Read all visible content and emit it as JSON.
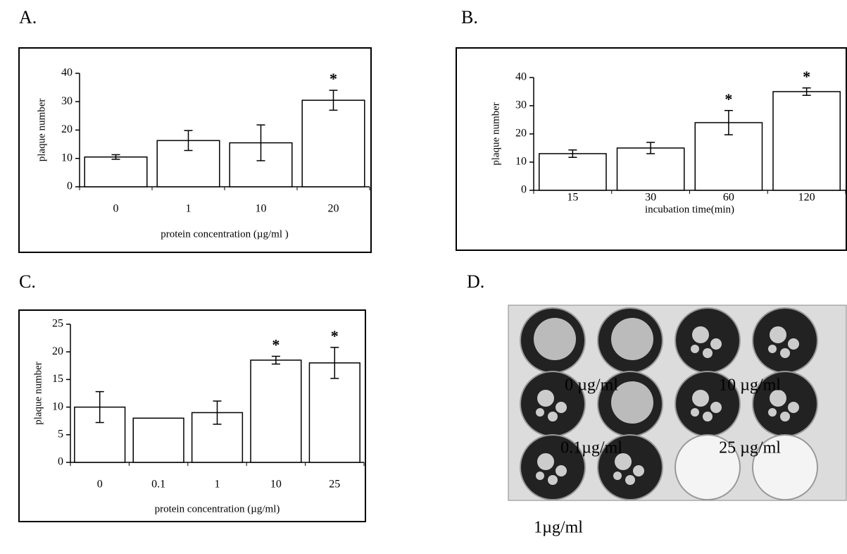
{
  "panels": {
    "labels": [
      "A.",
      "B.",
      "C.",
      "D."
    ]
  },
  "chart_data": [
    {
      "type": "bar",
      "ylabel": "plaque number",
      "xlabel": "protein concentration (µg/ml )",
      "categories": [
        "0",
        "1",
        "10",
        "20"
      ],
      "values": [
        10.5,
        16.3,
        15.5,
        30.5
      ],
      "errors": [
        0.8,
        3.5,
        6.3,
        3.5
      ],
      "markers": [
        null,
        null,
        null,
        "*"
      ],
      "color": "#ffffff",
      "ylim": [
        0,
        40
      ],
      "yticks": [
        0,
        10,
        20,
        30,
        40
      ]
    },
    {
      "type": "bar",
      "ylabel": "plaque number",
      "xlabel": "incubation time(min)",
      "categories": [
        "15",
        "30",
        "60",
        "120"
      ],
      "values": [
        13,
        15,
        24,
        35
      ],
      "errors": [
        1.3,
        2,
        4.3,
        1.3
      ],
      "markers": [
        null,
        null,
        "*",
        "*"
      ],
      "color": "#ffffff",
      "ylim": [
        0,
        40
      ],
      "yticks": [
        0,
        10,
        20,
        30,
        40
      ]
    },
    {
      "type": "bar",
      "ylabel": "plaque number",
      "xlabel": "protein concentration (µg/ml)",
      "categories": [
        "0",
        "0.1",
        "1",
        "10",
        "25"
      ],
      "values": [
        10,
        8,
        9,
        18.5,
        18
      ],
      "errors": [
        2.8,
        null,
        2.1,
        0.7,
        2.8
      ],
      "markers": [
        null,
        null,
        null,
        "*",
        "*"
      ],
      "color": "#ffffff",
      "ylim": [
        0,
        25
      ],
      "yticks": [
        0,
        5,
        10,
        15,
        20,
        25
      ]
    }
  ],
  "photo": {
    "labels": [
      "0 µg/ml",
      "10 µg/ml",
      "0.1µg/ml",
      "25 µg/ml",
      "1µg/ml"
    ]
  }
}
